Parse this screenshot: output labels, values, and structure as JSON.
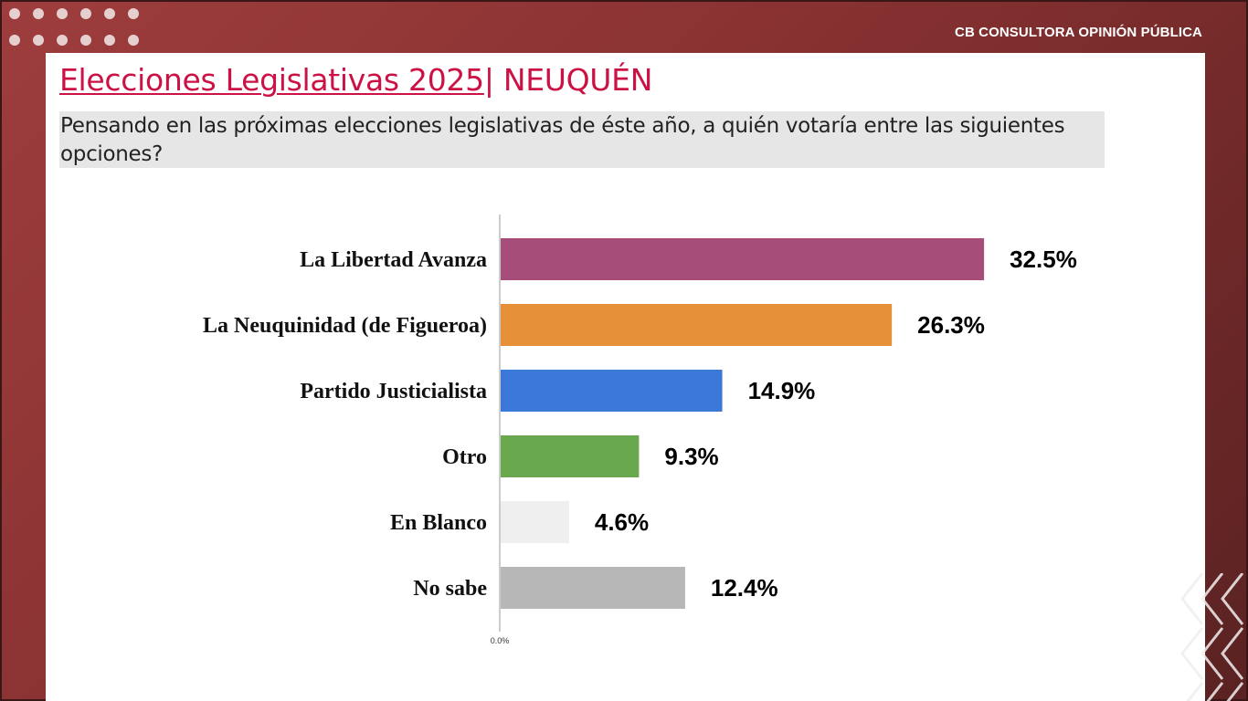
{
  "header": {
    "brand": "CB CONSULTORA OPINIÓN PÚBLICA"
  },
  "slide": {
    "title_main": "Elecciones Legislativas 2025",
    "title_suffix": "| NEUQUÉN",
    "question": "Pensando en las próximas elecciones legislativas de éste año, a quién votaría entre las siguientes opciones?"
  },
  "colors": {
    "title": "#cc1144",
    "frame": "#8a3232",
    "axis": "#999999"
  },
  "chart_data": {
    "type": "bar",
    "orientation": "horizontal",
    "title": "",
    "xlabel": "",
    "ylabel": "",
    "xlim": [
      0,
      45
    ],
    "grid": false,
    "legend": "none",
    "tick_labels": [
      "0.0%"
    ],
    "categories": [
      "La Libertad Avanza",
      "La Neuquinidad (de Figueroa)",
      "Partido Justicialista",
      "Otro",
      "En Blanco",
      "No sabe"
    ],
    "values": [
      32.5,
      26.3,
      14.9,
      9.3,
      4.6,
      12.4
    ],
    "value_labels": [
      "32.5%",
      "26.3%",
      "14.9%",
      "9.3%",
      "4.6%",
      "12.4%"
    ],
    "bar_colors": [
      "#a64d79",
      "#e69138",
      "#3c78d8",
      "#6aa84f",
      "#efefef",
      "#b7b7b7"
    ]
  }
}
